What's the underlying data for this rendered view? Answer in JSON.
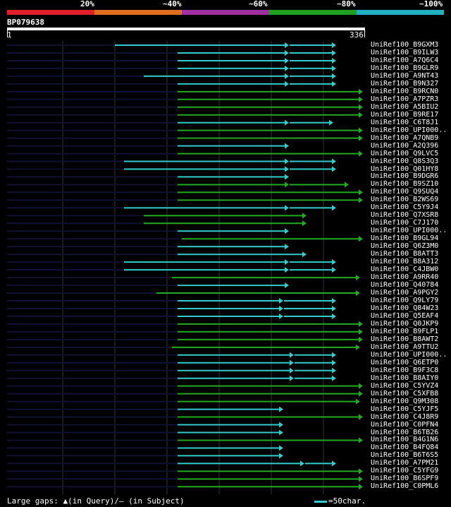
{
  "identity_legend": [
    {
      "label": "20%",
      "color": "#e0202a"
    },
    {
      "label": "~40%",
      "color": "#e07020"
    },
    {
      "label": "~60%",
      "color": "#a030a0"
    },
    {
      "label": "~80%",
      "color": "#20a020"
    },
    {
      "label": "~100%",
      "color": "#20b0c0"
    }
  ],
  "query": {
    "name": "BP079638",
    "start": "1",
    "end": "336"
  },
  "hits": [
    {
      "label": "UniRef100_B9GXM3",
      "color": "#3cc"
    },
    {
      "label": "UniRef100_B9ILW3",
      "color": "#3cc"
    },
    {
      "label": "UniRef100_A7Q6C4",
      "color": "#3cc"
    },
    {
      "label": "UniRef100_B9GLR9",
      "color": "#3cc"
    },
    {
      "label": "UniRef100_A9NT43",
      "color": "#3cc"
    },
    {
      "label": "UniRef100_B9N327",
      "color": "#3cc"
    },
    {
      "label": "UniRef100_B9RCN0",
      "color": "#2a2"
    },
    {
      "label": "UniRef100_A7PZR3",
      "color": "#2a2"
    },
    {
      "label": "UniRef100_A5BIU2",
      "color": "#2a2"
    },
    {
      "label": "UniRef100_B9RE17",
      "color": "#2a2"
    },
    {
      "label": "UniRef100_C6T8J1",
      "color": "#3cc"
    },
    {
      "label": "UniRef100_UPI000..",
      "color": "#2a2"
    },
    {
      "label": "UniRef100_A7QNB9",
      "color": "#2a2"
    },
    {
      "label": "UniRef100_A2Q396",
      "color": "#3cc"
    },
    {
      "label": "UniRef100_Q9LVC5",
      "color": "#2a2"
    },
    {
      "label": "UniRef100_Q8S3Q3",
      "color": "#3cc"
    },
    {
      "label": "UniRef100_Q01HY8",
      "color": "#3cc"
    },
    {
      "label": "UniRef100_B9DGR6",
      "color": "#3cc"
    },
    {
      "label": "UniRef100_B9SZ10",
      "color": "#2a2"
    },
    {
      "label": "UniRef100_Q9SUQ4",
      "color": "#2a2"
    },
    {
      "label": "UniRef100_B2WS69",
      "color": "#2a2"
    },
    {
      "label": "UniRef100_C5Y9J4",
      "color": "#3cc"
    },
    {
      "label": "UniRef100_Q7XSR8",
      "color": "#2a2"
    },
    {
      "label": "UniRef100_C7J170",
      "color": "#2a2"
    },
    {
      "label": "UniRef100_UPI000..",
      "color": "#3cc"
    },
    {
      "label": "UniRef100_B9GL94",
      "color": "#2a2"
    },
    {
      "label": "UniRef100_Q6Z3M0",
      "color": "#3cc"
    },
    {
      "label": "UniRef100_B8ATT3",
      "color": "#3cc"
    },
    {
      "label": "UniRef100_B8A312",
      "color": "#3cc"
    },
    {
      "label": "UniRef100_C4JBW0",
      "color": "#3cc"
    },
    {
      "label": "UniRef100_A9RR40",
      "color": "#2a2"
    },
    {
      "label": "UniRef100_Q40784",
      "color": "#3cc"
    },
    {
      "label": "UniRef100_A9PGY2",
      "color": "#2a2"
    },
    {
      "label": "UniRef100_Q9LY79",
      "color": "#3cc"
    },
    {
      "label": "UniRef100_Q84W23",
      "color": "#3cc"
    },
    {
      "label": "UniRef100_Q5EAF4",
      "color": "#3cc"
    },
    {
      "label": "UniRef100_Q0JKP9",
      "color": "#2a2"
    },
    {
      "label": "UniRef100_B9FLP1",
      "color": "#2a2"
    },
    {
      "label": "UniRef100_B8AWT2",
      "color": "#2a2"
    },
    {
      "label": "UniRef100_A9TTU2",
      "color": "#2a2"
    },
    {
      "label": "UniRef100_UPI000..",
      "color": "#3cc"
    },
    {
      "label": "UniRef100_Q6ETP0",
      "color": "#3cc"
    },
    {
      "label": "UniRef100_B9F3C8",
      "color": "#3cc"
    },
    {
      "label": "UniRef100_B8AIY0",
      "color": "#3cc"
    },
    {
      "label": "UniRef100_C5YVZ4",
      "color": "#2a2"
    },
    {
      "label": "UniRef100_C5XFB8",
      "color": "#2a2"
    },
    {
      "label": "UniRef100_Q9M308",
      "color": "#2a2"
    },
    {
      "label": "UniRef100_C5YJF5",
      "color": "#3cc"
    },
    {
      "label": "UniRef100_C4J8R9",
      "color": "#2a2"
    },
    {
      "label": "UniRef100_C0PFN4",
      "color": "#3cc"
    },
    {
      "label": "UniRef100_B6TB26",
      "color": "#3cc"
    },
    {
      "label": "UniRef100_B4G1N6",
      "color": "#2a2"
    },
    {
      "label": "UniRef100_B4FQ84",
      "color": "#3cc"
    },
    {
      "label": "UniRef100_B6T6S5",
      "color": "#3cc"
    },
    {
      "label": "UniRef100_A7PM21",
      "color": "#3cc"
    },
    {
      "label": "UniRef100_C5YFG9",
      "color": "#2a2"
    },
    {
      "label": "UniRef100_B6SPF9",
      "color": "#2a2"
    },
    {
      "label": "UniRef100_C0PML6",
      "color": "#2a2"
    }
  ],
  "footer": {
    "gaps_text": "Large gaps: ▲(in Query)/— (in Subject)",
    "scale_text": "=50char."
  }
}
